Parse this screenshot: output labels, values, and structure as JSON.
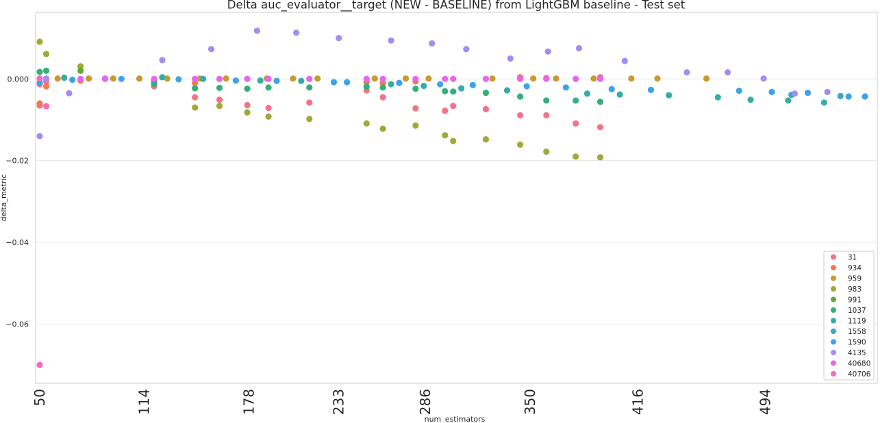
{
  "chart_data": {
    "type": "scatter",
    "title": "Delta auc_evaluator__target (NEW - BASELINE) from LightGBM baseline - Test set",
    "xlabel": "num_estimators",
    "ylabel": "delta_metric",
    "x_ticks": [
      "50",
      "114",
      "178",
      "233",
      "286",
      "350",
      "416",
      "494"
    ],
    "y_ticks": [
      0.0,
      -0.02,
      -0.04,
      -0.06
    ],
    "y_tick_labels": [
      "0.000",
      "−0.02",
      "−0.04",
      "−0.06"
    ],
    "ylim": [
      -0.0745,
      0.0163
    ],
    "grid": "horizontal",
    "legend_position": "lower right",
    "series": [
      {
        "name": "31",
        "color": "#f77189",
        "points": [
          {
            "x": 50,
            "y": -0.0065
          },
          {
            "x": 50,
            "y": -0.0013
          },
          {
            "x": 54,
            "y": -0.0006
          },
          {
            "x": 120,
            "y": -0.0018
          },
          {
            "x": 145,
            "y": -0.0045
          },
          {
            "x": 160,
            "y": -0.0051
          },
          {
            "x": 177,
            "y": -0.0064
          },
          {
            "x": 190,
            "y": -0.0071
          },
          {
            "x": 215,
            "y": -0.0058
          },
          {
            "x": 250,
            "y": -0.0028
          },
          {
            "x": 260,
            "y": -0.0045
          },
          {
            "x": 280,
            "y": -0.0072
          },
          {
            "x": 298,
            "y": -0.0078
          },
          {
            "x": 303,
            "y": -0.0066
          },
          {
            "x": 323,
            "y": -0.0074
          },
          {
            "x": 344,
            "y": -0.0089
          },
          {
            "x": 360,
            "y": -0.0089
          },
          {
            "x": 378,
            "y": -0.0109
          },
          {
            "x": 393,
            "y": -0.0118
          }
        ]
      },
      {
        "name": "934",
        "color": "#f7754f",
        "points": [
          {
            "x": 50,
            "y": -0.006
          },
          {
            "x": 54,
            "y": -0.0018
          },
          {
            "x": 75,
            "y": -0.0004
          },
          {
            "x": 145,
            "y": -0.001
          },
          {
            "x": 250,
            "y": -0.0008
          },
          {
            "x": 260,
            "y": -0.001
          },
          {
            "x": 280,
            "y": -0.0006
          },
          {
            "x": 344,
            "y": 0.0004
          },
          {
            "x": 360,
            "y": 0.0002
          },
          {
            "x": 393,
            "y": 0.0004
          }
        ]
      },
      {
        "name": "959",
        "color": "#c79a32",
        "points": [
          {
            "x": 61,
            "y": 0.0001
          },
          {
            "x": 80,
            "y": 0.0001
          },
          {
            "x": 95,
            "y": 0.0001
          },
          {
            "x": 111,
            "y": 0.0001
          },
          {
            "x": 128,
            "y": 0.0001
          },
          {
            "x": 148,
            "y": 0.0001
          },
          {
            "x": 164,
            "y": 0.0001
          },
          {
            "x": 189,
            "y": 0.0001
          },
          {
            "x": 205,
            "y": 0.0001
          },
          {
            "x": 220,
            "y": 0.0001
          },
          {
            "x": 255,
            "y": 0.0001
          },
          {
            "x": 274,
            "y": 0.0001
          },
          {
            "x": 288,
            "y": 0.0001
          },
          {
            "x": 327,
            "y": 0.0001
          },
          {
            "x": 352,
            "y": 0.0001
          },
          {
            "x": 366,
            "y": 0.0001
          },
          {
            "x": 389,
            "y": 0.0001
          },
          {
            "x": 412,
            "y": 0.0001
          },
          {
            "x": 428,
            "y": 0.0001
          },
          {
            "x": 458,
            "y": 0.0001
          }
        ]
      },
      {
        "name": "983",
        "color": "#a0a936",
        "points": [
          {
            "x": 50,
            "y": 0.0091
          },
          {
            "x": 54,
            "y": 0.0061
          },
          {
            "x": 75,
            "y": 0.0031
          },
          {
            "x": 145,
            "y": -0.007
          },
          {
            "x": 160,
            "y": -0.0066
          },
          {
            "x": 177,
            "y": -0.0082
          },
          {
            "x": 190,
            "y": -0.0092
          },
          {
            "x": 215,
            "y": -0.0098
          },
          {
            "x": 250,
            "y": -0.0109
          },
          {
            "x": 260,
            "y": -0.0122
          },
          {
            "x": 280,
            "y": -0.0114
          },
          {
            "x": 298,
            "y": -0.0138
          },
          {
            "x": 303,
            "y": -0.0152
          },
          {
            "x": 323,
            "y": -0.0148
          },
          {
            "x": 344,
            "y": -0.0161
          },
          {
            "x": 360,
            "y": -0.0178
          },
          {
            "x": 378,
            "y": -0.019
          },
          {
            "x": 393,
            "y": -0.0192
          }
        ]
      },
      {
        "name": "991",
        "color": "#5cae32",
        "points": [
          {
            "x": 75,
            "y": 0.002
          },
          {
            "x": 120,
            "y": -0.0006
          }
        ]
      },
      {
        "name": "1037",
        "color": "#33b07a",
        "points": [
          {
            "x": 50,
            "y": 0.0017
          },
          {
            "x": 54,
            "y": 0.002
          },
          {
            "x": 120,
            "y": -0.0012
          },
          {
            "x": 145,
            "y": -0.0023
          },
          {
            "x": 160,
            "y": -0.0022
          },
          {
            "x": 177,
            "y": -0.0024
          },
          {
            "x": 190,
            "y": -0.0021
          },
          {
            "x": 215,
            "y": -0.0021
          },
          {
            "x": 250,
            "y": -0.0019
          },
          {
            "x": 260,
            "y": -0.0021
          },
          {
            "x": 280,
            "y": -0.0024
          },
          {
            "x": 298,
            "y": -0.003
          },
          {
            "x": 303,
            "y": -0.0031
          },
          {
            "x": 323,
            "y": -0.0034
          },
          {
            "x": 344,
            "y": -0.0043
          },
          {
            "x": 360,
            "y": -0.0053
          },
          {
            "x": 378,
            "y": -0.0053
          },
          {
            "x": 393,
            "y": -0.0056
          }
        ]
      },
      {
        "name": "1119",
        "color": "#36ada4",
        "points": [
          {
            "x": 65,
            "y": 0.0003
          },
          {
            "x": 125,
            "y": 0.0004
          },
          {
            "x": 150,
            "y": 0.0
          },
          {
            "x": 185,
            "y": -0.0004
          },
          {
            "x": 210,
            "y": -0.0005
          },
          {
            "x": 265,
            "y": -0.0013
          },
          {
            "x": 285,
            "y": -0.0017
          },
          {
            "x": 308,
            "y": -0.0023
          },
          {
            "x": 336,
            "y": -0.0028
          },
          {
            "x": 385,
            "y": -0.0036
          },
          {
            "x": 405,
            "y": -0.0038
          },
          {
            "x": 435,
            "y": -0.004
          },
          {
            "x": 465,
            "y": -0.0045
          },
          {
            "x": 485,
            "y": -0.0051
          },
          {
            "x": 508,
            "y": -0.0053
          },
          {
            "x": 530,
            "y": -0.0058
          }
        ]
      },
      {
        "name": "1558",
        "color": "#38aabf",
        "points": [
          {
            "x": 510,
            "y": -0.0039
          },
          {
            "x": 540,
            "y": -0.0042
          }
        ]
      },
      {
        "name": "1590",
        "color": "#3ba3ec",
        "points": [
          {
            "x": 50,
            "y": -0.0009
          },
          {
            "x": 70,
            "y": -0.0002
          },
          {
            "x": 100,
            "y": 0.0
          },
          {
            "x": 135,
            "y": -0.0001
          },
          {
            "x": 170,
            "y": -0.0004
          },
          {
            "x": 195,
            "y": -0.0005
          },
          {
            "x": 230,
            "y": -0.0008
          },
          {
            "x": 238,
            "y": -0.0008
          },
          {
            "x": 270,
            "y": -0.001
          },
          {
            "x": 295,
            "y": -0.0013
          },
          {
            "x": 315,
            "y": -0.0015
          },
          {
            "x": 348,
            "y": -0.0018
          },
          {
            "x": 372,
            "y": -0.0021
          },
          {
            "x": 400,
            "y": -0.0025
          },
          {
            "x": 424,
            "y": -0.0027
          },
          {
            "x": 478,
            "y": -0.0029
          },
          {
            "x": 498,
            "y": -0.0032
          },
          {
            "x": 520,
            "y": -0.0034
          },
          {
            "x": 545,
            "y": -0.0043
          },
          {
            "x": 555,
            "y": -0.0043
          }
        ]
      },
      {
        "name": "4135",
        "color": "#a48cf4",
        "points": [
          {
            "x": 50,
            "y": -0.014
          },
          {
            "x": 54,
            "y": 0.0001
          },
          {
            "x": 68,
            "y": -0.0035
          },
          {
            "x": 90,
            "y": 0.0001
          },
          {
            "x": 125,
            "y": 0.0046
          },
          {
            "x": 155,
            "y": 0.0073
          },
          {
            "x": 183,
            "y": 0.0118
          },
          {
            "x": 207,
            "y": 0.0113
          },
          {
            "x": 233,
            "y": 0.01
          },
          {
            "x": 265,
            "y": 0.0094
          },
          {
            "x": 290,
            "y": 0.0087
          },
          {
            "x": 311,
            "y": 0.0073
          },
          {
            "x": 338,
            "y": 0.005
          },
          {
            "x": 361,
            "y": 0.0067
          },
          {
            "x": 380,
            "y": 0.0075
          },
          {
            "x": 408,
            "y": 0.0044
          },
          {
            "x": 446,
            "y": 0.0016
          },
          {
            "x": 471,
            "y": 0.0016
          },
          {
            "x": 493,
            "y": 0.0001
          },
          {
            "x": 512,
            "y": -0.0036
          },
          {
            "x": 532,
            "y": -0.0032
          }
        ]
      },
      {
        "name": "40680",
        "color": "#e865f1",
        "points": [
          {
            "x": 75,
            "y": 0.0
          },
          {
            "x": 90,
            "y": 0.0
          },
          {
            "x": 120,
            "y": 0.0
          },
          {
            "x": 145,
            "y": 0.0
          },
          {
            "x": 160,
            "y": 0.0
          },
          {
            "x": 177,
            "y": 0.0
          },
          {
            "x": 190,
            "y": 0.0
          },
          {
            "x": 215,
            "y": 0.0
          },
          {
            "x": 250,
            "y": 0.0
          },
          {
            "x": 260,
            "y": 0.0
          },
          {
            "x": 280,
            "y": 0.0
          },
          {
            "x": 298,
            "y": 0.0
          },
          {
            "x": 303,
            "y": 0.0
          },
          {
            "x": 323,
            "y": 0.0
          },
          {
            "x": 344,
            "y": 0.0
          },
          {
            "x": 360,
            "y": 0.0
          },
          {
            "x": 378,
            "y": 0.0
          },
          {
            "x": 393,
            "y": 0.0
          }
        ]
      },
      {
        "name": "40706",
        "color": "#f668c2",
        "points": [
          {
            "x": 50,
            "y": -0.07
          },
          {
            "x": 54,
            "y": -0.0067
          },
          {
            "x": 50,
            "y": 0.0001
          }
        ]
      }
    ]
  }
}
